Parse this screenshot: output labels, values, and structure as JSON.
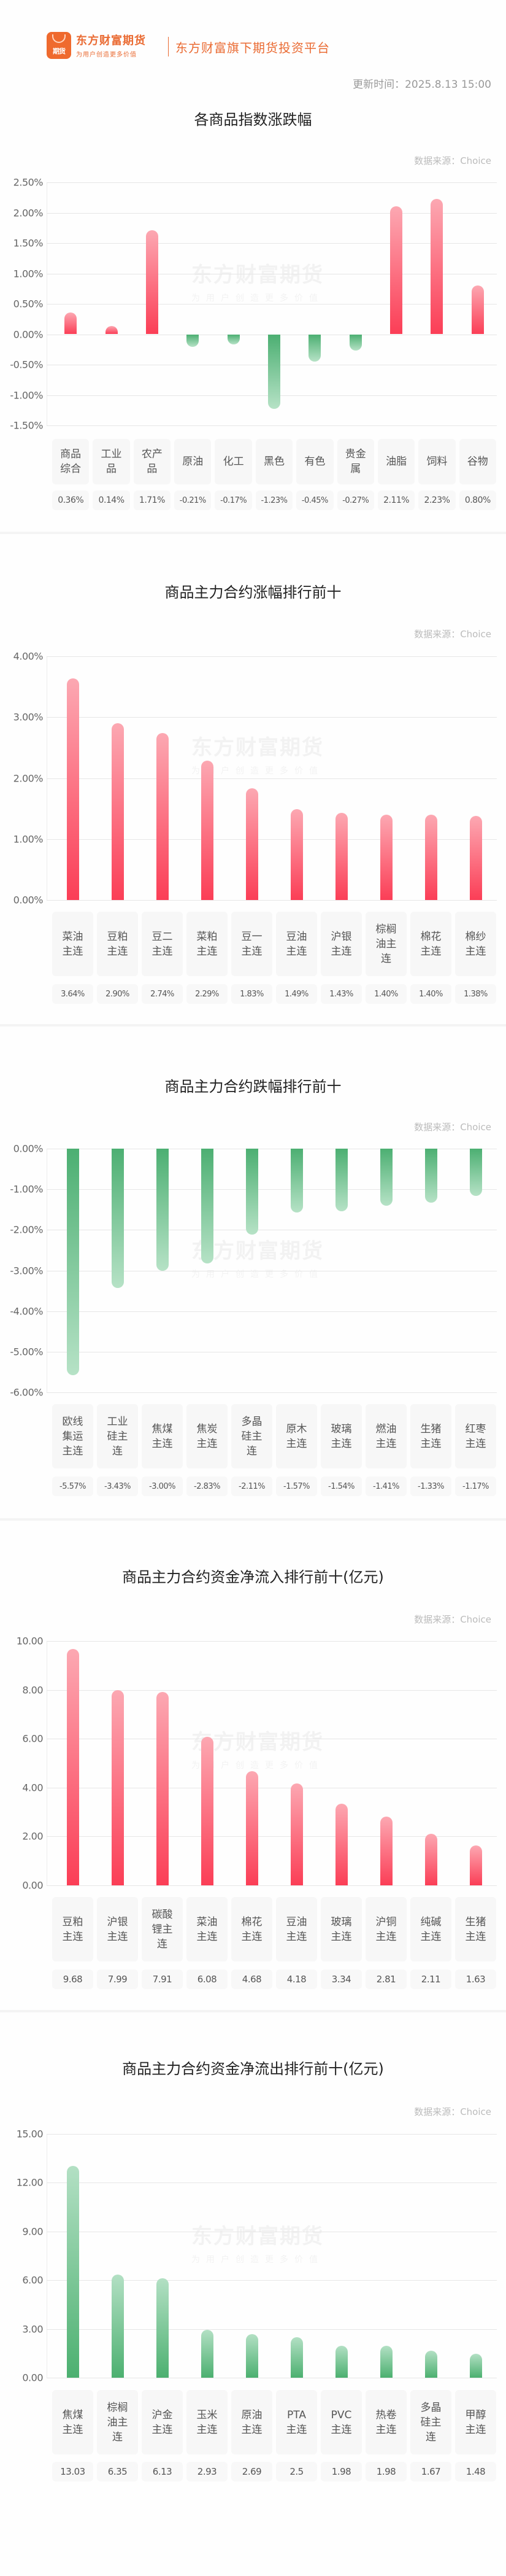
{
  "header": {
    "logo_text": "期货",
    "brand_name": "东方财富期货",
    "brand_slogan": "为用户创造更多价值",
    "platform_text": "东方财富旗下期货投资平台",
    "update_time": "更新时间：2025.8.13 15:00"
  },
  "watermark": {
    "line1": "东方财富期货",
    "line2": "为用户创造更多价值"
  },
  "colors": {
    "brand": "#ea6b33",
    "up": "#fb3e56",
    "down": "#4caf72"
  },
  "chart_data": [
    {
      "type": "bar",
      "title": "各商品指数涨跌幅",
      "source": "数据来源：Choice",
      "categories": [
        "商品综合",
        "工业品",
        "农产品",
        "原油",
        "化工",
        "黑色",
        "有色",
        "贵金属",
        "油脂",
        "饲料",
        "谷物"
      ],
      "category_labels": [
        "商品\n综合",
        "工业\n品",
        "农产\n品",
        "原油",
        "化工",
        "黑色",
        "有色",
        "贵金\n属",
        "油脂",
        "饲料",
        "谷物"
      ],
      "values": [
        0.36,
        0.14,
        1.71,
        -0.21,
        -0.17,
        -1.23,
        -0.45,
        -0.27,
        2.11,
        2.23,
        0.8
      ],
      "value_labels": [
        "0.36%",
        "0.14%",
        "1.71%",
        "-0.21%",
        "-0.17%",
        "-1.23%",
        "-0.45%",
        "-0.27%",
        "2.11%",
        "2.23%",
        "0.80%"
      ],
      "yticks": [
        "2.50%",
        "2.00%",
        "1.50%",
        "1.00%",
        "0.50%",
        "0.00%",
        "-0.50%",
        "-1.00%",
        "-1.50%"
      ],
      "ylim": [
        -1.5,
        2.5
      ],
      "unit": "%",
      "grid": true
    },
    {
      "type": "bar",
      "title": "商品主力合约涨幅排行前十",
      "source": "数据来源：Choice",
      "categories": [
        "菜油主连",
        "豆粕主连",
        "豆二主连",
        "菜粕主连",
        "豆一主连",
        "豆油主连",
        "沪银主连",
        "棕榈油主连",
        "棉花主连",
        "棉纱主连"
      ],
      "category_labels": [
        "菜油\n主连",
        "豆粕\n主连",
        "豆二\n主连",
        "菜粕\n主连",
        "豆一\n主连",
        "豆油\n主连",
        "沪银\n主连",
        "棕榈\n油主\n连",
        "棉花\n主连",
        "棉纱\n主连"
      ],
      "values": [
        3.64,
        2.9,
        2.74,
        2.29,
        1.83,
        1.49,
        1.43,
        1.4,
        1.4,
        1.38
      ],
      "value_labels": [
        "3.64%",
        "2.90%",
        "2.74%",
        "2.29%",
        "1.83%",
        "1.49%",
        "1.43%",
        "1.40%",
        "1.40%",
        "1.38%"
      ],
      "yticks": [
        "4.00%",
        "3.00%",
        "2.00%",
        "1.00%",
        "0.00%"
      ],
      "ylim": [
        0,
        4
      ],
      "unit": "%",
      "grid": true
    },
    {
      "type": "bar",
      "title": "商品主力合约跌幅排行前十",
      "source": "数据来源：Choice",
      "categories": [
        "欧线集运主连",
        "工业硅主连",
        "焦煤主连",
        "焦炭主连",
        "多晶硅主连",
        "原木主连",
        "玻璃主连",
        "燃油主连",
        "生猪主连",
        "红枣主连"
      ],
      "category_labels": [
        "欧线\n集运\n主连",
        "工业\n硅主\n连",
        "焦煤\n主连",
        "焦炭\n主连",
        "多晶\n硅主\n连",
        "原木\n主连",
        "玻璃\n主连",
        "燃油\n主连",
        "生猪\n主连",
        "红枣\n主连"
      ],
      "values": [
        -5.57,
        -3.43,
        -3.0,
        -2.83,
        -2.11,
        -1.57,
        -1.54,
        -1.41,
        -1.33,
        -1.17
      ],
      "value_labels": [
        "-5.57%",
        "-3.43%",
        "-3.00%",
        "-2.83%",
        "-2.11%",
        "-1.57%",
        "-1.54%",
        "-1.41%",
        "-1.33%",
        "-1.17%"
      ],
      "yticks": [
        "0.00%",
        "-1.00%",
        "-2.00%",
        "-3.00%",
        "-4.00%",
        "-5.00%",
        "-6.00%"
      ],
      "ylim": [
        -6,
        0
      ],
      "unit": "%",
      "grid": true
    },
    {
      "type": "bar",
      "title": "商品主力合约资金净流入排行前十(亿元)",
      "source": "数据来源：Choice",
      "categories": [
        "豆粕主连",
        "沪银主连",
        "碳酸锂主连",
        "菜油主连",
        "棉花主连",
        "豆油主连",
        "玻璃主连",
        "沪铜主连",
        "纯碱主连",
        "生猪主连"
      ],
      "category_labels": [
        "豆粕\n主连",
        "沪银\n主连",
        "碳酸\n锂主\n连",
        "菜油\n主连",
        "棉花\n主连",
        "豆油\n主连",
        "玻璃\n主连",
        "沪铜\n主连",
        "纯碱\n主连",
        "生猪\n主连"
      ],
      "values": [
        9.68,
        7.99,
        7.91,
        6.08,
        4.68,
        4.18,
        3.34,
        2.81,
        2.11,
        1.63
      ],
      "value_labels": [
        "9.68",
        "7.99",
        "7.91",
        "6.08",
        "4.68",
        "4.18",
        "3.34",
        "2.81",
        "2.11",
        "1.63"
      ],
      "yticks": [
        "10.00",
        "8.00",
        "6.00",
        "4.00",
        "2.00",
        "0.00"
      ],
      "ylim": [
        0,
        10
      ],
      "unit": "亿元",
      "grid": true
    },
    {
      "type": "bar",
      "title": "商品主力合约资金净流出排行前十(亿元)",
      "source": "数据来源：Choice",
      "categories": [
        "焦煤主连",
        "棕榈油主连",
        "沪金主连",
        "玉米主连",
        "原油主连",
        "PTA主连",
        "PVC主连",
        "热卷主连",
        "多晶硅主连",
        "甲醇主连"
      ],
      "category_labels": [
        "焦煤\n主连",
        "棕榈\n油主\n连",
        "沪金\n主连",
        "玉米\n主连",
        "原油\n主连",
        "PTA\n主连",
        "PVC\n主连",
        "热卷\n主连",
        "多晶\n硅主\n连",
        "甲醇\n主连"
      ],
      "values": [
        13.03,
        6.35,
        6.13,
        2.93,
        2.69,
        2.5,
        1.98,
        1.98,
        1.67,
        1.48
      ],
      "value_labels": [
        "13.03",
        "6.35",
        "6.13",
        "2.93",
        "2.69",
        "2.5",
        "1.98",
        "1.98",
        "1.67",
        "1.48"
      ],
      "yticks": [
        "15.00",
        "12.00",
        "9.00",
        "6.00",
        "3.00",
        "0.00"
      ],
      "ylim": [
        0,
        15
      ],
      "unit": "亿元",
      "grid": true
    }
  ]
}
